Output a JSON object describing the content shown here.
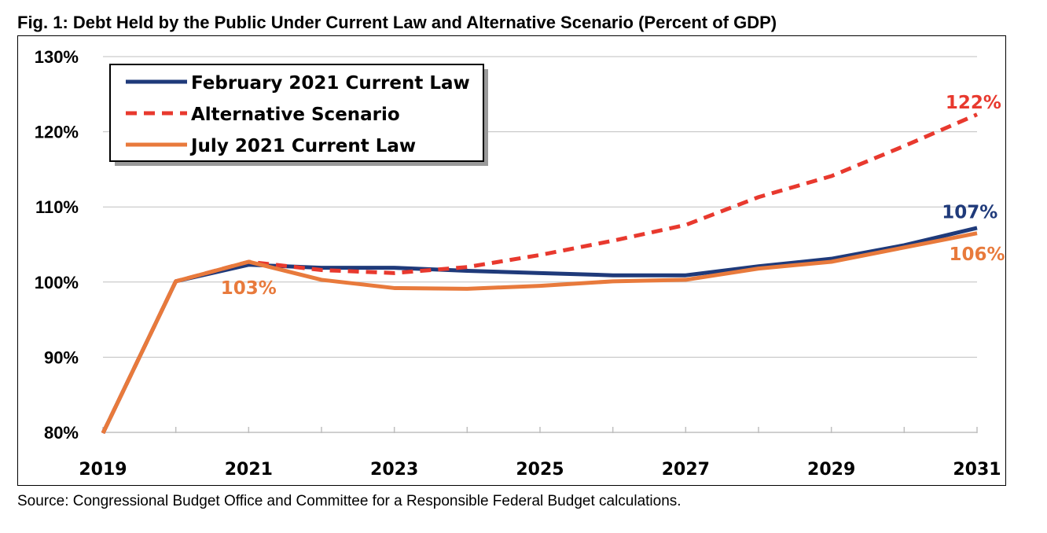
{
  "chart_data": {
    "type": "line",
    "title": "Fig. 1: Debt Held by the Public Under Current Law and Alternative Scenario (Percent of GDP)",
    "source": "Source: Congressional Budget Office and Committee for a Responsible Federal Budget calculations.",
    "x": [
      2019,
      2020,
      2021,
      2022,
      2023,
      2024,
      2025,
      2026,
      2027,
      2028,
      2029,
      2030,
      2031
    ],
    "xticks": [
      "2019",
      "2021",
      "2023",
      "2025",
      "2027",
      "2029",
      "2031"
    ],
    "yticks": [
      "80%",
      "90%",
      "100%",
      "110%",
      "120%",
      "130%"
    ],
    "ylim": [
      80,
      130
    ],
    "grid": true,
    "legend_position": "top-left",
    "series": [
      {
        "name": "February 2021 Current Law",
        "color": "#1F3A7A",
        "style": "solid",
        "values": [
          79.9,
          100.1,
          102.3,
          101.9,
          101.9,
          101.5,
          101.2,
          100.9,
          100.9,
          102.1,
          103.1,
          104.9,
          107.2
        ]
      },
      {
        "name": "Alternative Scenario",
        "color": "#E8392E",
        "style": "dashed",
        "values": [
          79.9,
          100.1,
          102.7,
          101.6,
          101.2,
          102.0,
          103.6,
          105.5,
          107.6,
          111.3,
          114.1,
          118.1,
          122.3
        ]
      },
      {
        "name": "July 2021 Current Law",
        "color": "#E87A3C",
        "style": "solid",
        "values": [
          79.9,
          100.1,
          102.7,
          100.3,
          99.2,
          99.1,
          99.5,
          100.1,
          100.3,
          101.8,
          102.7,
          104.6,
          106.5
        ]
      }
    ],
    "annotations": [
      {
        "text": "122%",
        "color": "#E8392E",
        "x": 2030.95,
        "y": 123.1
      },
      {
        "text": "107%",
        "color": "#1F3A7A",
        "x": 2030.9,
        "y": 108.5
      },
      {
        "text": "106%",
        "color": "#E87A3C",
        "x": 2031.0,
        "y": 102.9
      },
      {
        "text": "103%",
        "color": "#E87A3C",
        "x": 2021.0,
        "y": 98.4
      }
    ]
  }
}
